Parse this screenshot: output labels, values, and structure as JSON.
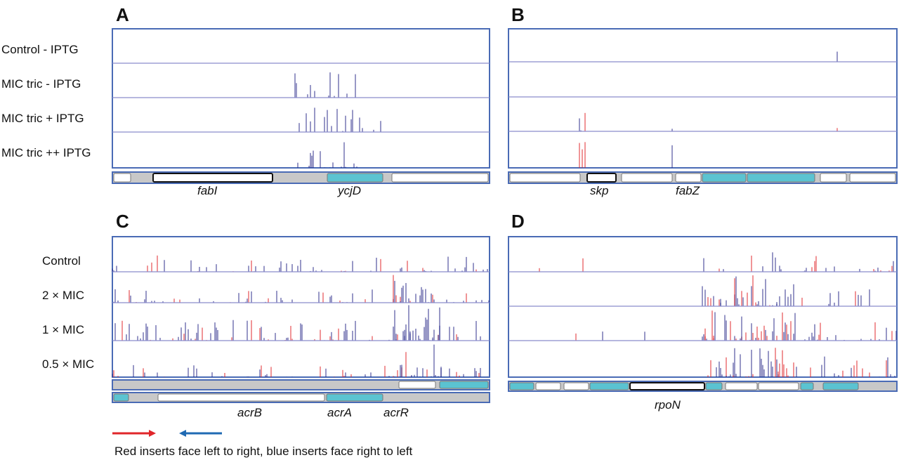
{
  "panels": [
    {
      "letter": "A",
      "rows": [
        "Control - IPTG",
        "MIC tric - IPTG",
        "MIC tric + IPTG",
        "MIC tric ++ IPTG"
      ],
      "genes": [
        "fabI",
        "ycjD"
      ]
    },
    {
      "letter": "B",
      "genes": [
        "skp",
        "fabZ"
      ]
    },
    {
      "letter": "C",
      "rows": [
        "Control",
        "2 × MIC",
        "1 × MIC",
        "0.5 × MIC"
      ],
      "genes": [
        "acrB",
        "acrA",
        "acrR"
      ]
    },
    {
      "letter": "D",
      "genes": [
        "rpoN"
      ]
    }
  ],
  "legend": {
    "caption": "Red inserts face left to right, blue inserts face right to left"
  },
  "colors": {
    "frame": "#4a6bb5",
    "track_line": "#8a8ccc",
    "forward": "#e0262a",
    "reverse": "#2b2d8c",
    "gene_fill": "#5bc3d1",
    "intergenic": "#c8c8c8",
    "legend_red": "#e0262a",
    "legend_blue": "#1f6ab3"
  }
}
